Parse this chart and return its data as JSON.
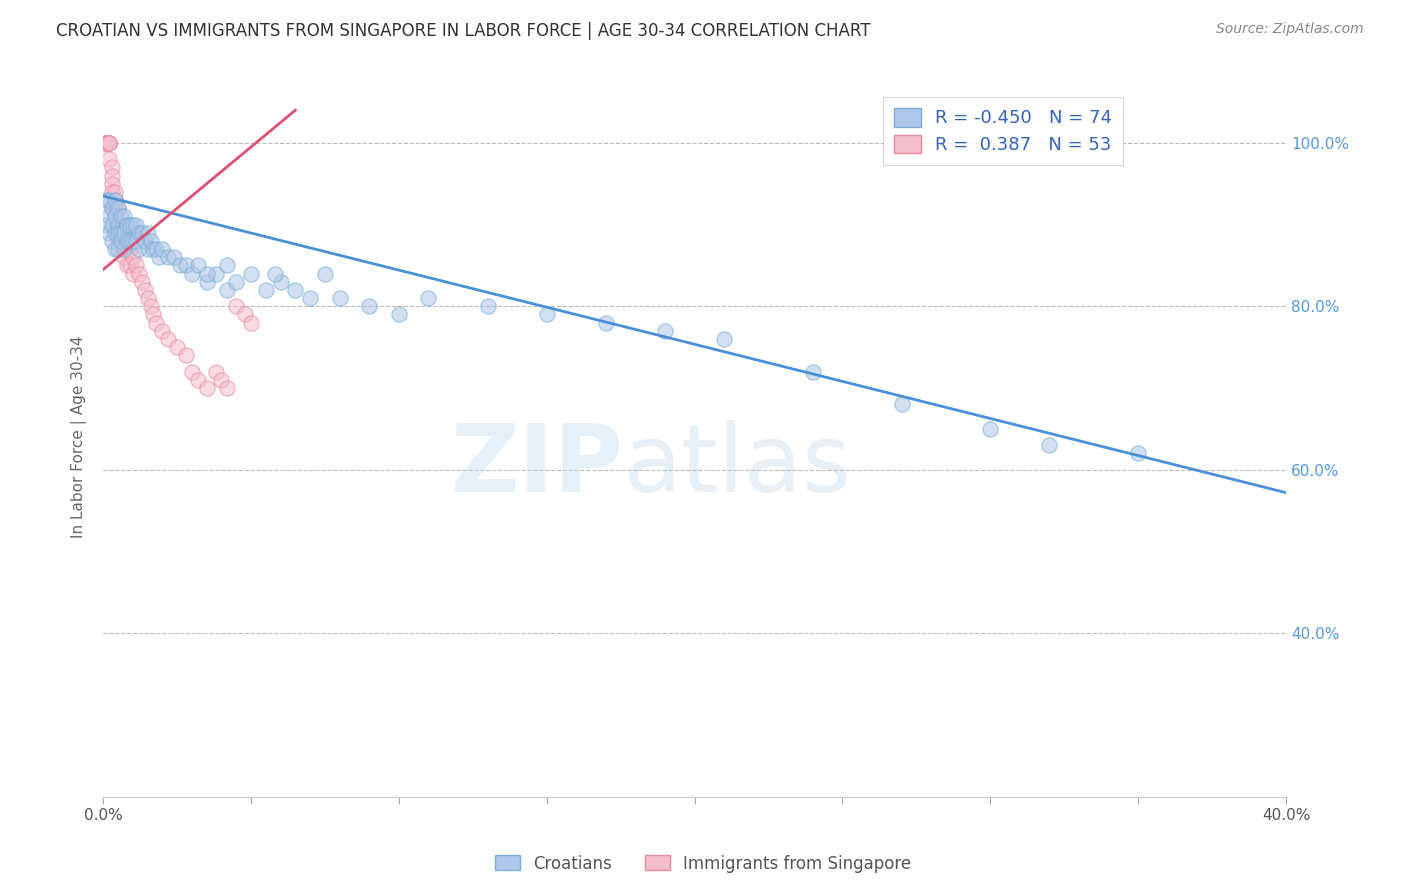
{
  "title": "CROATIAN VS IMMIGRANTS FROM SINGAPORE IN LABOR FORCE | AGE 30-34 CORRELATION CHART",
  "source": "Source: ZipAtlas.com",
  "ylabel": "In Labor Force | Age 30-34",
  "xlim": [
    0.0,
    0.4
  ],
  "ylim": [
    0.2,
    1.08
  ],
  "xticks": [
    0.0,
    0.05,
    0.1,
    0.15,
    0.2,
    0.25,
    0.3,
    0.35,
    0.4
  ],
  "yticks": [
    0.4,
    0.6,
    0.8,
    1.0
  ],
  "ytick_labels": [
    "40.0%",
    "60.0%",
    "80.0%",
    "100.0%"
  ],
  "xtick_labels": [
    "0.0%",
    "",
    "",
    "",
    "",
    "",
    "",
    "",
    "40.0%"
  ],
  "blue_color": "#aec6e8",
  "blue_edge_color": "#7aafd4",
  "pink_color": "#f5bece",
  "pink_edge_color": "#e8899e",
  "trend_blue_color": "#4a90d9",
  "trend_pink_color": "#e05070",
  "R_blue": -0.45,
  "N_blue": 74,
  "R_pink": 0.387,
  "N_pink": 53,
  "blue_trend_x": [
    0.0,
    0.4
  ],
  "blue_trend_y": [
    0.935,
    0.572
  ],
  "pink_trend_x": [
    0.0,
    0.065
  ],
  "pink_trend_y": [
    0.845,
    1.04
  ],
  "blue_x": [
    0.001,
    0.001,
    0.002,
    0.002,
    0.002,
    0.003,
    0.003,
    0.003,
    0.004,
    0.004,
    0.004,
    0.004,
    0.005,
    0.005,
    0.005,
    0.005,
    0.006,
    0.006,
    0.006,
    0.007,
    0.007,
    0.007,
    0.008,
    0.008,
    0.009,
    0.009,
    0.01,
    0.01,
    0.011,
    0.011,
    0.012,
    0.012,
    0.013,
    0.014,
    0.015,
    0.015,
    0.016,
    0.017,
    0.018,
    0.019,
    0.02,
    0.022,
    0.024,
    0.026,
    0.028,
    0.03,
    0.032,
    0.035,
    0.038,
    0.042,
    0.045,
    0.05,
    0.055,
    0.06,
    0.065,
    0.07,
    0.08,
    0.09,
    0.1,
    0.11,
    0.13,
    0.15,
    0.17,
    0.19,
    0.21,
    0.24,
    0.27,
    0.3,
    0.32,
    0.35,
    0.035,
    0.042,
    0.058,
    0.075
  ],
  "blue_y": [
    0.93,
    0.9,
    0.93,
    0.91,
    0.89,
    0.92,
    0.9,
    0.88,
    0.93,
    0.91,
    0.89,
    0.87,
    0.92,
    0.9,
    0.89,
    0.87,
    0.91,
    0.89,
    0.88,
    0.91,
    0.89,
    0.87,
    0.9,
    0.88,
    0.9,
    0.88,
    0.9,
    0.88,
    0.9,
    0.88,
    0.89,
    0.87,
    0.89,
    0.88,
    0.89,
    0.87,
    0.88,
    0.87,
    0.87,
    0.86,
    0.87,
    0.86,
    0.86,
    0.85,
    0.85,
    0.84,
    0.85,
    0.83,
    0.84,
    0.82,
    0.83,
    0.84,
    0.82,
    0.83,
    0.82,
    0.81,
    0.81,
    0.8,
    0.79,
    0.81,
    0.8,
    0.79,
    0.78,
    0.77,
    0.76,
    0.72,
    0.68,
    0.65,
    0.63,
    0.62,
    0.84,
    0.85,
    0.84,
    0.84
  ],
  "pink_x": [
    0.001,
    0.001,
    0.001,
    0.001,
    0.002,
    0.002,
    0.002,
    0.002,
    0.003,
    0.003,
    0.003,
    0.003,
    0.003,
    0.004,
    0.004,
    0.004,
    0.004,
    0.005,
    0.005,
    0.005,
    0.005,
    0.006,
    0.006,
    0.006,
    0.007,
    0.007,
    0.008,
    0.008,
    0.009,
    0.009,
    0.01,
    0.01,
    0.011,
    0.012,
    0.013,
    0.014,
    0.015,
    0.016,
    0.017,
    0.018,
    0.02,
    0.022,
    0.025,
    0.028,
    0.03,
    0.032,
    0.035,
    0.038,
    0.04,
    0.042,
    0.045,
    0.048,
    0.05
  ],
  "pink_y": [
    1.0,
    1.0,
    1.0,
    1.0,
    1.0,
    1.0,
    1.0,
    0.98,
    0.97,
    0.96,
    0.95,
    0.94,
    0.92,
    0.94,
    0.93,
    0.92,
    0.91,
    0.92,
    0.9,
    0.89,
    0.88,
    0.9,
    0.88,
    0.87,
    0.88,
    0.86,
    0.87,
    0.85,
    0.87,
    0.85,
    0.86,
    0.84,
    0.85,
    0.84,
    0.83,
    0.82,
    0.81,
    0.8,
    0.79,
    0.78,
    0.77,
    0.76,
    0.75,
    0.74,
    0.72,
    0.71,
    0.7,
    0.72,
    0.71,
    0.7,
    0.8,
    0.79,
    0.78
  ],
  "watermark_zip": "ZIP",
  "watermark_atlas": "atlas",
  "marker_size": 120,
  "alpha": 0.55,
  "background_color": "#ffffff",
  "grid_color": "#bbbbbb",
  "title_color": "#333333",
  "axis_label_color": "#666666",
  "right_ytick_color": "#5599dd",
  "legend_text_color": "#3366bb"
}
